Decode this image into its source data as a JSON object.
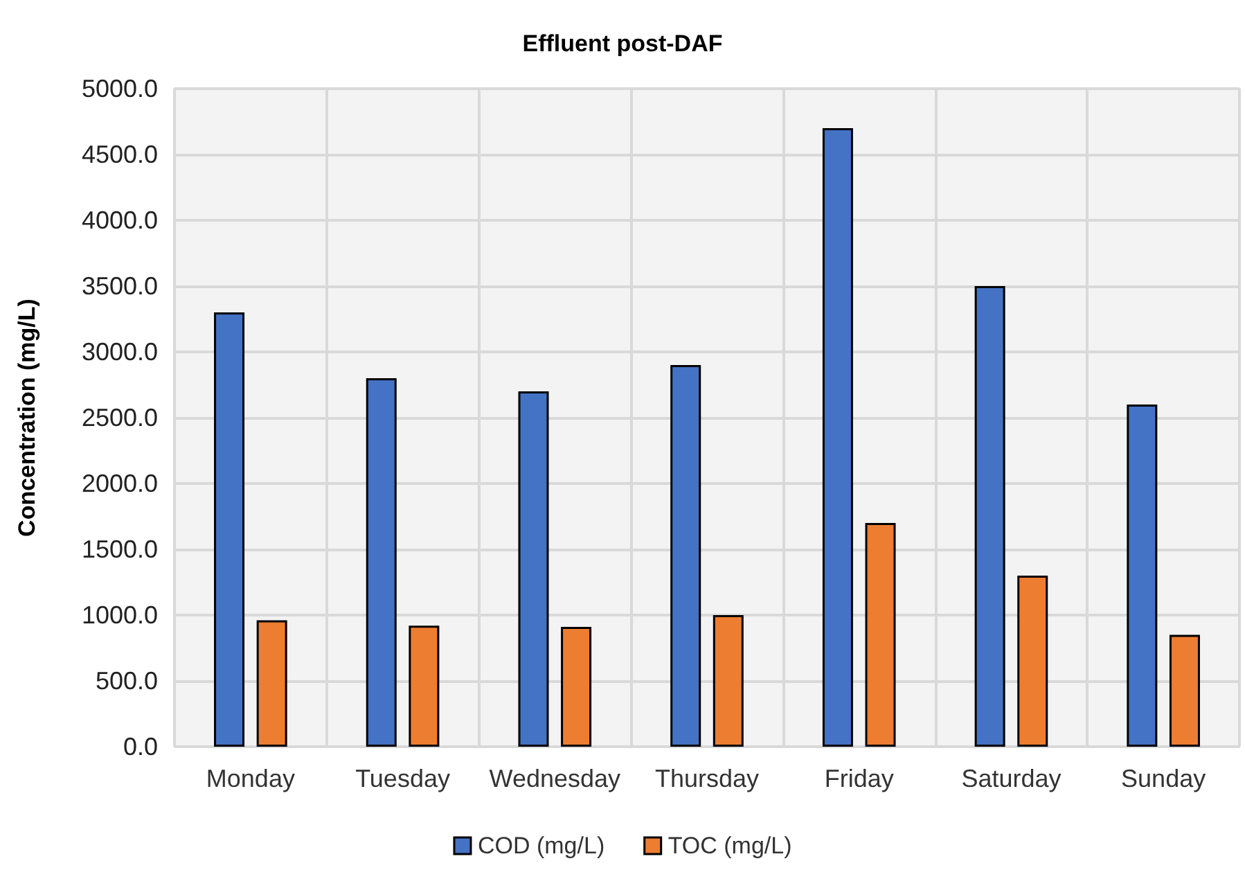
{
  "chart_data": {
    "type": "bar",
    "title": "Effluent post-DAF",
    "ylabel": "Concentration (mg/L)",
    "categories": [
      "Monday",
      "Tuesday",
      "Wednesday",
      "Thursday",
      "Friday",
      "Saturday",
      "Sunday"
    ],
    "series": [
      {
        "name": "COD (mg/L)",
        "color": "#4472c4",
        "values": [
          3300,
          2800,
          2700,
          2900,
          4700,
          3500,
          2600
        ]
      },
      {
        "name": "TOC (mg/L)",
        "color": "#ed7d31",
        "values": [
          960,
          920,
          910,
          1000,
          1700,
          1300,
          850
        ]
      }
    ],
    "ylim": [
      0,
      5000
    ],
    "yticks": [
      {
        "value": 0,
        "label": "0.0"
      },
      {
        "value": 500,
        "label": "500.0"
      },
      {
        "value": 1000,
        "label": "1000.0"
      },
      {
        "value": 1500,
        "label": "1500.0"
      },
      {
        "value": 2000,
        "label": "2000.0"
      },
      {
        "value": 2500,
        "label": "2500.0"
      },
      {
        "value": 3000,
        "label": "3000.0"
      },
      {
        "value": 3500,
        "label": "3500.0"
      },
      {
        "value": 4000,
        "label": "4000.0"
      },
      {
        "value": 4500,
        "label": "4500.0"
      },
      {
        "value": 5000,
        "label": "5000.0"
      }
    ],
    "grid": true,
    "legend": "bottom"
  }
}
